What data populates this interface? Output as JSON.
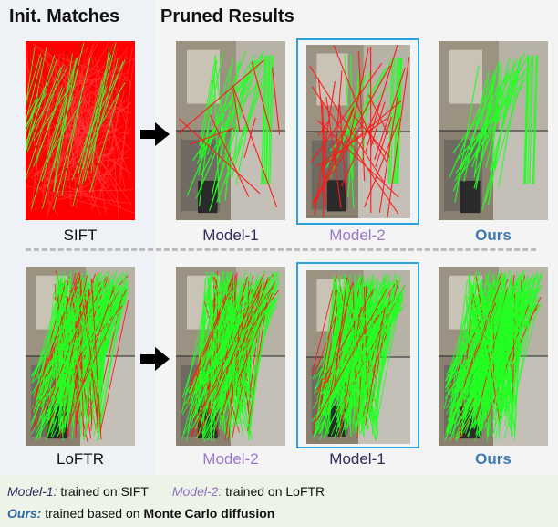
{
  "headers": {
    "init": "Init. Matches",
    "pruned": "Pruned Results"
  },
  "colors": {
    "model1": "#2e2b5f",
    "model2": "#9a78cc",
    "ours": "#3f79b5",
    "inlier": "#22ff22",
    "outlier": "#ff1a1a",
    "highlight": "#2ca3dd"
  },
  "rows": [
    {
      "init_label": "SIFT",
      "results": [
        {
          "label": "Model-1"
        },
        {
          "label": "Model-2"
        },
        {
          "label": "Ours"
        }
      ]
    },
    {
      "init_label": "LoFTR",
      "results": [
        {
          "label": "Model-2"
        },
        {
          "label": "Model-1"
        },
        {
          "label": "Ours"
        }
      ]
    }
  ],
  "legend": {
    "m1_name": "Model-1:",
    "m1_desc": " trained on SIFT",
    "m2_name": "Model-2:",
    "m2_desc": " trained on LoFTR",
    "ours_name": "Ours:",
    "ours_desc": " trained based on ",
    "ours_bold": "Monte Carlo diffusion"
  }
}
